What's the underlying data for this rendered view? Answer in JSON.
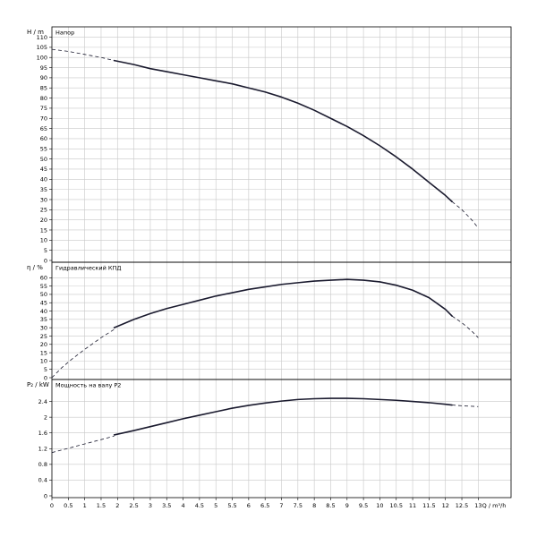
{
  "chart_data": {
    "x": {
      "label": "Q / m³/h",
      "range": [
        0,
        14
      ],
      "ticks": [
        0,
        0.5,
        1,
        1.5,
        2,
        2.5,
        3,
        3.5,
        4,
        4.5,
        5,
        5.5,
        6,
        6.5,
        7,
        7.5,
        8,
        8.5,
        9,
        9.5,
        10,
        10.5,
        11,
        11.5,
        12,
        12.5,
        13
      ],
      "tick_labels": [
        "0",
        "0.5",
        "1",
        "1.5",
        "2",
        "2.5",
        "3",
        "3.5",
        "4",
        "4.5",
        "5",
        "5.5",
        "6",
        "6.5",
        "7",
        "7.5",
        "8",
        "8.5",
        "9",
        "9.5",
        "10",
        "10.5",
        "11",
        "11.5",
        "12",
        "12.5",
        "13"
      ]
    },
    "panels": [
      {
        "type": "line",
        "title": "Напор",
        "ylabel": "H / m",
        "ylim": [
          0,
          112
        ],
        "y_ticks": [
          0,
          5,
          10,
          15,
          20,
          25,
          30,
          35,
          40,
          45,
          50,
          55,
          60,
          65,
          70,
          75,
          80,
          85,
          90,
          95,
          100,
          105,
          110
        ],
        "grid": true,
        "series": [
          {
            "style": "dashed",
            "x": [
              0,
              0.5,
              1,
              1.5,
              1.9
            ],
            "y": [
              104,
              103,
              101.5,
              100,
              98.5
            ]
          },
          {
            "style": "solid",
            "x": [
              1.9,
              2.5,
              3,
              3.5,
              4,
              4.5,
              5,
              5.5,
              6,
              6.5,
              7,
              7.5,
              8,
              8.5,
              9,
              9.5,
              10,
              10.5,
              11,
              11.5,
              12,
              12.2
            ],
            "y": [
              98.5,
              96.5,
              94.5,
              93,
              91.5,
              90,
              88.5,
              87,
              85,
              83,
              80.5,
              77.5,
              74,
              70,
              66,
              61.5,
              56.5,
              51,
              45,
              38.5,
              32,
              29
            ]
          },
          {
            "style": "dashed",
            "x": [
              12.2,
              12.5,
              12.8,
              13
            ],
            "y": [
              29,
              25,
              20,
              16
            ]
          }
        ]
      },
      {
        "type": "line",
        "title": "Гидравлический КПД",
        "ylabel": "η / %",
        "ylim": [
          0,
          65
        ],
        "y_ticks": [
          0,
          5,
          10,
          15,
          20,
          25,
          30,
          35,
          40,
          45,
          50,
          55,
          60
        ],
        "grid": true,
        "series": [
          {
            "style": "dashed",
            "x": [
              0,
              0.3,
              0.6,
              1,
              1.5,
              1.9
            ],
            "y": [
              0,
              6,
              11,
              17,
              24,
              29
            ]
          },
          {
            "style": "solid",
            "x": [
              1.9,
              2.5,
              3,
              3.5,
              4,
              4.5,
              5,
              5.5,
              6,
              6.5,
              7,
              7.5,
              8,
              8.5,
              9,
              9.5,
              10,
              10.5,
              11,
              11.5,
              12,
              12.2
            ],
            "y": [
              30,
              35,
              38.5,
              41.5,
              44,
              46.5,
              49,
              51,
              53,
              54.5,
              56,
              57,
              58,
              58.5,
              59,
              58.5,
              57.5,
              55.5,
              52.5,
              48,
              41,
              37
            ]
          },
          {
            "style": "dashed",
            "x": [
              12.2,
              12.5,
              12.8,
              13
            ],
            "y": [
              37,
              33,
              28,
              24
            ]
          }
        ]
      },
      {
        "type": "line",
        "title": "Мощность на валу P2",
        "ylabel": "P₂ / kW",
        "ylim": [
          0,
          2.8
        ],
        "y_ticks": [
          0,
          0.4,
          0.8,
          1.2,
          1.6,
          2,
          2.4
        ],
        "y_tick_labels": [
          "0",
          "0.4",
          "0.8",
          "1.2",
          "1.6",
          "2",
          "2.4"
        ],
        "grid": true,
        "series": [
          {
            "style": "dashed",
            "x": [
              0,
              0.5,
              1,
              1.5,
              1.9
            ],
            "y": [
              1.1,
              1.21,
              1.32,
              1.43,
              1.52
            ]
          },
          {
            "style": "solid",
            "x": [
              1.9,
              2.5,
              3,
              3.5,
              4,
              4.5,
              5,
              5.5,
              6,
              6.5,
              7,
              7.5,
              8,
              8.5,
              9,
              9.5,
              10,
              10.5,
              11,
              11.5,
              12,
              12.2
            ],
            "y": [
              1.55,
              1.66,
              1.76,
              1.86,
              1.96,
              2.05,
              2.14,
              2.23,
              2.3,
              2.36,
              2.41,
              2.45,
              2.47,
              2.48,
              2.48,
              2.47,
              2.45,
              2.43,
              2.4,
              2.37,
              2.33,
              2.31
            ]
          },
          {
            "style": "dashed",
            "x": [
              12.2,
              12.5,
              13
            ],
            "y": [
              2.31,
              2.29,
              2.27
            ]
          }
        ]
      }
    ]
  }
}
